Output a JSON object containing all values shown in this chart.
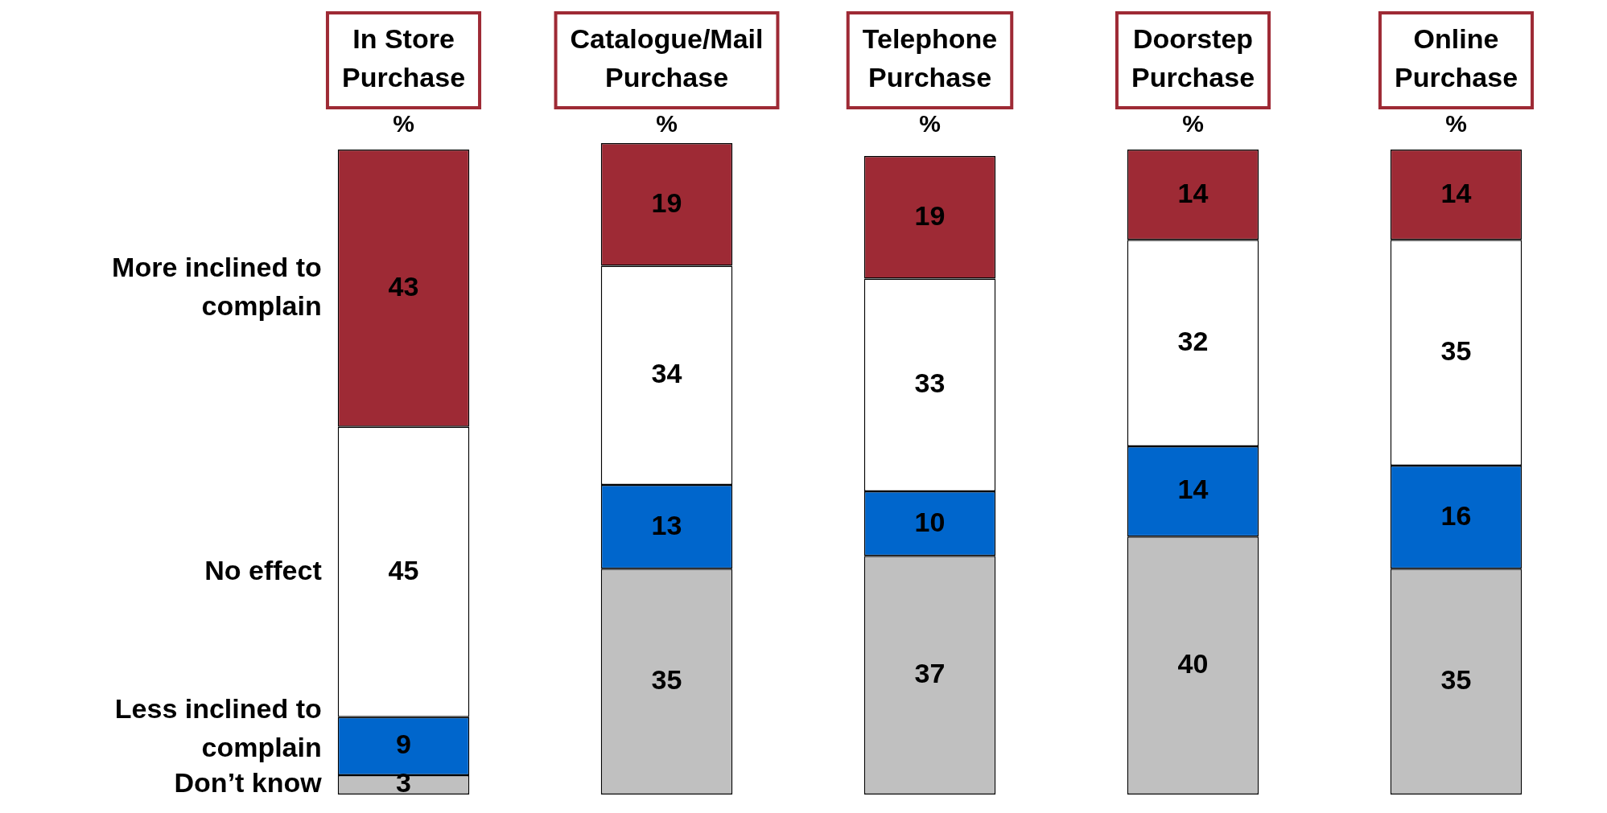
{
  "chart_data": {
    "type": "bar",
    "stacked": true,
    "data_labels": true,
    "legend": "left",
    "ylabel": "%",
    "categories": [
      "In Store Purchase",
      "Catalogue/Mail Purchase",
      "Telephone Purchase",
      "Doorstep Purchase",
      "Online Purchase"
    ],
    "series": [
      {
        "name": "Don’t know",
        "color": "#c0c0c0",
        "values": [
          3,
          35,
          37,
          40,
          35
        ]
      },
      {
        "name": "Less inclined to complain",
        "color": "#0066cc",
        "values": [
          9,
          13,
          10,
          14,
          16
        ]
      },
      {
        "name": "No effect",
        "color": "#ffffff",
        "values": [
          45,
          34,
          33,
          32,
          35
        ]
      },
      {
        "name": "More inclined to complain",
        "color": "#9e2a35",
        "values": [
          43,
          19,
          19,
          14,
          14
        ]
      }
    ]
  }
}
